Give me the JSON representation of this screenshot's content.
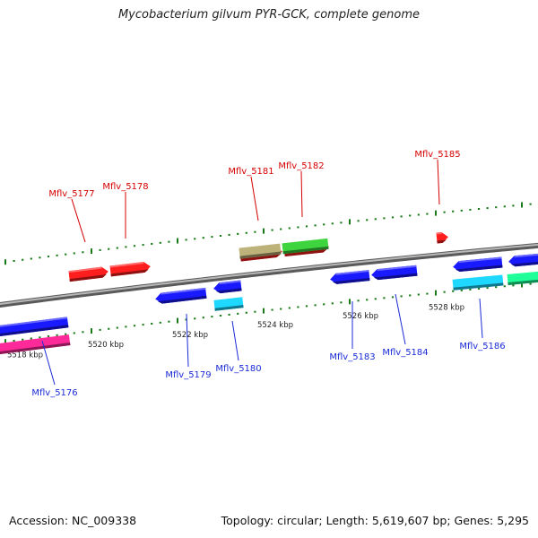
{
  "title": "Mycobacterium gilvum PYR-GCK, complete genome",
  "footer": {
    "accession": "Accession: NC_009338",
    "info": "Topology: circular; Length: 5,619,607 bp; Genes: 5,295"
  },
  "colors": {
    "backbone": "#8a8a8a",
    "tick": "#1a7a1a",
    "forward_label": "#d40000",
    "reverse_label": "#1a2bd6",
    "red": "#ff1e1e",
    "blue": "#1a1aff",
    "magenta": "#ff2a9a",
    "cyan": "#1ed8ff",
    "olive": "#bdb37a",
    "green": "#3ed43e",
    "aqua": "#1eff9a"
  },
  "scale": {
    "unit": "kbp",
    "labels": [
      "5518 kbp",
      "5520 kbp",
      "5522 kbp",
      "5524 kbp",
      "5526 kbp",
      "5528 kbp"
    ]
  },
  "genes": [
    {
      "name": "Mflv_5176",
      "strand": "reverse",
      "color": "blue"
    },
    {
      "name": "Mflv_5177",
      "strand": "forward",
      "color": "red"
    },
    {
      "name": "Mflv_5178",
      "strand": "forward",
      "color": "red"
    },
    {
      "name": "Mflv_5179",
      "strand": "reverse",
      "color": "blue"
    },
    {
      "name": "Mflv_5180",
      "strand": "reverse",
      "color": "blue"
    },
    {
      "name": "Mflv_5181",
      "strand": "forward",
      "color": "red"
    },
    {
      "name": "Mflv_5182",
      "strand": "forward",
      "color": "red"
    },
    {
      "name": "Mflv_5183",
      "strand": "reverse",
      "color": "blue"
    },
    {
      "name": "Mflv_5184",
      "strand": "reverse",
      "color": "blue"
    },
    {
      "name": "Mflv_5185",
      "strand": "forward",
      "color": "red"
    },
    {
      "name": "Mflv_5186",
      "strand": "reverse",
      "color": "blue"
    }
  ]
}
